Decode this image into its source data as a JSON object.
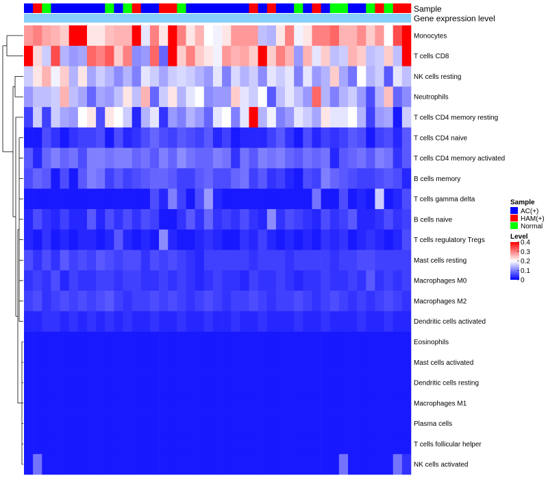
{
  "chart_data": {
    "type": "heatmap",
    "annotation_labels": [
      "Sample",
      "Gene expression level"
    ],
    "sample_groups": [
      "AC",
      "HAM",
      "NOR",
      "AC",
      "AC",
      "AC",
      "AC",
      "AC",
      "AC",
      "NOR",
      "AC",
      "NOR",
      "HAM",
      "AC",
      "AC",
      "HAM",
      "HAM",
      "NOR",
      "AC",
      "AC",
      "AC",
      "AC",
      "AC",
      "AC",
      "AC",
      "HAM",
      "AC",
      "HAM",
      "AC",
      "AC",
      "NOR",
      "AC",
      "HAM",
      "AC",
      "NOR",
      "NOR",
      "AC",
      "AC",
      "NOR",
      "HAM",
      "NOR",
      "HAM",
      "HAM"
    ],
    "rows": [
      "Monocytes",
      "T cells CD8",
      "NK cells resting",
      "Neutrophils",
      "T cells CD4 memory resting",
      "T cells CD4 naive",
      "T cells CD4 memory activated",
      "B cells memory",
      "T cells gamma delta",
      "B cells naive",
      "T cells regulatory  Tregs",
      "Mast cells resting",
      "Macrophages M0",
      "Macrophages M2",
      "Dendritic cells activated",
      "Eosinophils",
      "Mast cells activated",
      "Dendritic cells resting",
      "Macrophages M1",
      "Plasma cells",
      "T cells follicular helper",
      "NK cells activated"
    ],
    "values": [
      [
        0.28,
        0.3,
        0.27,
        0.26,
        0.24,
        0.4,
        0.4,
        0.22,
        0.22,
        0.25,
        0.26,
        0.26,
        0.4,
        0.18,
        0.3,
        0.22,
        0.4,
        0.3,
        0.22,
        0.26,
        0.2,
        0.19,
        0.22,
        0.28,
        0.28,
        0.28,
        0.15,
        0.14,
        0.22,
        0.3,
        0.19,
        0.22,
        0.3,
        0.3,
        0.32,
        0.26,
        0.26,
        0.29,
        0.24,
        0.28,
        0.2,
        0.34,
        0.4
      ],
      [
        0.4,
        0.23,
        0.16,
        0.34,
        0.14,
        0.12,
        0.13,
        0.32,
        0.3,
        0.33,
        0.24,
        0.3,
        0.11,
        0.12,
        0.32,
        0.08,
        0.4,
        0.24,
        0.3,
        0.24,
        0.22,
        0.19,
        0.28,
        0.26,
        0.27,
        0.24,
        0.4,
        0.24,
        0.3,
        0.26,
        0.12,
        0.26,
        0.18,
        0.24,
        0.15,
        0.16,
        0.26,
        0.24,
        0.15,
        0.16,
        0.24,
        0.15,
        0.4
      ],
      [
        0.16,
        0.22,
        0.26,
        0.19,
        0.24,
        0.14,
        0.22,
        0.13,
        0.16,
        0.14,
        0.11,
        0.14,
        0.1,
        0.18,
        0.16,
        0.13,
        0.16,
        0.17,
        0.16,
        0.14,
        0.12,
        0.18,
        0.1,
        0.17,
        0.14,
        0.16,
        0.11,
        0.18,
        0.16,
        0.18,
        0.1,
        0.18,
        0.12,
        0.14,
        0.24,
        0.13,
        0.09,
        0.2,
        0.14,
        0.16,
        0.07,
        0.18,
        0.15
      ],
      [
        0.12,
        0.15,
        0.15,
        0.16,
        0.26,
        0.15,
        0.13,
        0.08,
        0.13,
        0.12,
        0.15,
        0.22,
        0.15,
        0.26,
        0.08,
        0.16,
        0.22,
        0.14,
        0.18,
        0.2,
        0.11,
        0.12,
        0.12,
        0.24,
        0.18,
        0.16,
        0.2,
        0.07,
        0.15,
        0.18,
        0.15,
        0.12,
        0.32,
        0.14,
        0.1,
        0.14,
        0.16,
        0.12,
        0.06,
        0.14,
        0.25,
        0.08,
        0.11
      ],
      [
        0.05,
        0.16,
        0.05,
        0.16,
        0.13,
        0.12,
        0.2,
        0.22,
        0.06,
        0.22,
        0.2,
        0.16,
        0.03,
        0.14,
        0.18,
        0.04,
        0.12,
        0.1,
        0.14,
        0.12,
        0.08,
        0.18,
        0.2,
        0.1,
        0.18,
        0.4,
        0.14,
        0.19,
        0.1,
        0.12,
        0.18,
        0.16,
        0.13,
        0.22,
        0.18,
        0.18,
        0.2,
        0.14,
        0.05,
        0.12,
        0.13,
        0.02,
        0.16
      ],
      [
        0.02,
        0.02,
        0.06,
        0.04,
        0.02,
        0.04,
        0.05,
        0.05,
        0.06,
        0.02,
        0.06,
        0.03,
        0.04,
        0.06,
        0.08,
        0.06,
        0.05,
        0.07,
        0.06,
        0.05,
        0.07,
        0.03,
        0.05,
        0.02,
        0.03,
        0.03,
        0.03,
        0.05,
        0.07,
        0.04,
        0.02,
        0.06,
        0.03,
        0.05,
        0.04,
        0.05,
        0.07,
        0.06,
        0.02,
        0.05,
        0.06,
        0.03,
        0.07
      ],
      [
        0.07,
        0.03,
        0.08,
        0.1,
        0.08,
        0.09,
        0.06,
        0.1,
        0.1,
        0.09,
        0.1,
        0.1,
        0.08,
        0.09,
        0.07,
        0.1,
        0.08,
        0.11,
        0.09,
        0.08,
        0.08,
        0.1,
        0.09,
        0.04,
        0.09,
        0.07,
        0.1,
        0.09,
        0.1,
        0.08,
        0.07,
        0.09,
        0.08,
        0.09,
        0.03,
        0.07,
        0.08,
        0.09,
        0.07,
        0.1,
        0.09,
        0.04,
        0.07
      ],
      [
        0.06,
        0.08,
        0.07,
        0.02,
        0.06,
        0.02,
        0.07,
        0.1,
        0.09,
        0.05,
        0.07,
        0.05,
        0.06,
        0.07,
        0.08,
        0.08,
        0.07,
        0.05,
        0.05,
        0.07,
        0.08,
        0.06,
        0.06,
        0.08,
        0.09,
        0.05,
        0.07,
        0.04,
        0.05,
        0.03,
        0.02,
        0.06,
        0.05,
        0.1,
        0.08,
        0.07,
        0.06,
        0.05,
        0.05,
        0.06,
        0.07,
        0.06,
        0.03
      ],
      [
        0.02,
        0.02,
        0.02,
        0.02,
        0.02,
        0.02,
        0.02,
        0.02,
        0.02,
        0.02,
        0.02,
        0.02,
        0.02,
        0.02,
        0.06,
        0.03,
        0.1,
        0.05,
        0.02,
        0.06,
        0.12,
        0.03,
        0.02,
        0.02,
        0.02,
        0.02,
        0.02,
        0.02,
        0.02,
        0.02,
        0.02,
        0.02,
        0.09,
        0.02,
        0.02,
        0.06,
        0.02,
        0.03,
        0.02,
        0.16,
        0.02,
        0.03,
        0.06
      ],
      [
        0.03,
        0.06,
        0.04,
        0.03,
        0.05,
        0.03,
        0.03,
        0.07,
        0.03,
        0.06,
        0.04,
        0.06,
        0.04,
        0.06,
        0.05,
        0.02,
        0.02,
        0.04,
        0.07,
        0.04,
        0.08,
        0.04,
        0.05,
        0.04,
        0.06,
        0.04,
        0.03,
        0.11,
        0.04,
        0.06,
        0.05,
        0.04,
        0.03,
        0.06,
        0.04,
        0.05,
        0.07,
        0.03,
        0.03,
        0.04,
        0.06,
        0.04,
        0.05
      ],
      [
        0.03,
        0.02,
        0.04,
        0.02,
        0.03,
        0.02,
        0.03,
        0.03,
        0.02,
        0.03,
        0.07,
        0.03,
        0.02,
        0.03,
        0.02,
        0.11,
        0.03,
        0.02,
        0.02,
        0.03,
        0.04,
        0.03,
        0.02,
        0.02,
        0.04,
        0.03,
        0.05,
        0.03,
        0.02,
        0.03,
        0.02,
        0.03,
        0.02,
        0.04,
        0.03,
        0.04,
        0.02,
        0.03,
        0.04,
        0.03,
        0.02,
        0.03,
        0.06
      ],
      [
        0.06,
        0.04,
        0.06,
        0.04,
        0.07,
        0.05,
        0.06,
        0.05,
        0.07,
        0.06,
        0.05,
        0.06,
        0.06,
        0.04,
        0.06,
        0.05,
        0.06,
        0.05,
        0.04,
        0.03,
        0.05,
        0.05,
        0.05,
        0.05,
        0.05,
        0.04,
        0.05,
        0.05,
        0.05,
        0.04,
        0.05,
        0.05,
        0.05,
        0.05,
        0.04,
        0.05,
        0.05,
        0.06,
        0.06,
        0.05,
        0.05,
        0.05,
        0.05
      ],
      [
        0.04,
        0.05,
        0.04,
        0.06,
        0.03,
        0.05,
        0.04,
        0.04,
        0.05,
        0.05,
        0.04,
        0.05,
        0.05,
        0.04,
        0.04,
        0.05,
        0.04,
        0.05,
        0.04,
        0.03,
        0.04,
        0.05,
        0.04,
        0.04,
        0.03,
        0.05,
        0.04,
        0.04,
        0.05,
        0.04,
        0.03,
        0.04,
        0.04,
        0.05,
        0.04,
        0.04,
        0.05,
        0.04,
        0.07,
        0.04,
        0.05,
        0.04,
        0.05
      ],
      [
        0.05,
        0.06,
        0.04,
        0.05,
        0.06,
        0.05,
        0.06,
        0.05,
        0.06,
        0.07,
        0.05,
        0.04,
        0.05,
        0.05,
        0.06,
        0.05,
        0.06,
        0.05,
        0.04,
        0.05,
        0.06,
        0.05,
        0.04,
        0.05,
        0.05,
        0.06,
        0.05,
        0.04,
        0.05,
        0.05,
        0.06,
        0.05,
        0.04,
        0.05,
        0.06,
        0.05,
        0.04,
        0.05,
        0.04,
        0.05,
        0.06,
        0.05,
        0.04
      ],
      [
        0.03,
        0.03,
        0.04,
        0.04,
        0.03,
        0.04,
        0.03,
        0.04,
        0.03,
        0.04,
        0.03,
        0.04,
        0.03,
        0.03,
        0.04,
        0.03,
        0.03,
        0.04,
        0.03,
        0.03,
        0.04,
        0.03,
        0.03,
        0.04,
        0.03,
        0.03,
        0.04,
        0.03,
        0.03,
        0.03,
        0.04,
        0.03,
        0.03,
        0.04,
        0.03,
        0.03,
        0.03,
        0.04,
        0.03,
        0.03,
        0.04,
        0.03,
        0.03
      ],
      [
        0.02,
        0.02,
        0.02,
        0.02,
        0.02,
        0.02,
        0.02,
        0.02,
        0.02,
        0.02,
        0.02,
        0.02,
        0.02,
        0.02,
        0.02,
        0.02,
        0.02,
        0.02,
        0.02,
        0.02,
        0.02,
        0.02,
        0.02,
        0.02,
        0.02,
        0.02,
        0.02,
        0.02,
        0.02,
        0.02,
        0.02,
        0.02,
        0.02,
        0.02,
        0.02,
        0.02,
        0.02,
        0.02,
        0.02,
        0.02,
        0.02,
        0.02,
        0.02
      ],
      [
        0.02,
        0.02,
        0.02,
        0.02,
        0.02,
        0.02,
        0.02,
        0.02,
        0.02,
        0.02,
        0.02,
        0.02,
        0.02,
        0.02,
        0.02,
        0.02,
        0.02,
        0.02,
        0.02,
        0.02,
        0.02,
        0.02,
        0.02,
        0.02,
        0.02,
        0.02,
        0.02,
        0.02,
        0.02,
        0.02,
        0.02,
        0.02,
        0.02,
        0.02,
        0.02,
        0.02,
        0.02,
        0.02,
        0.02,
        0.02,
        0.02,
        0.02,
        0.02
      ],
      [
        0.02,
        0.02,
        0.02,
        0.02,
        0.02,
        0.02,
        0.02,
        0.02,
        0.02,
        0.02,
        0.02,
        0.02,
        0.02,
        0.02,
        0.02,
        0.02,
        0.02,
        0.02,
        0.02,
        0.02,
        0.02,
        0.02,
        0.02,
        0.02,
        0.02,
        0.02,
        0.02,
        0.02,
        0.02,
        0.02,
        0.02,
        0.02,
        0.02,
        0.02,
        0.02,
        0.02,
        0.02,
        0.02,
        0.02,
        0.02,
        0.02,
        0.02,
        0.02
      ],
      [
        0.02,
        0.02,
        0.02,
        0.02,
        0.02,
        0.02,
        0.02,
        0.02,
        0.02,
        0.02,
        0.02,
        0.02,
        0.02,
        0.02,
        0.02,
        0.02,
        0.02,
        0.02,
        0.02,
        0.02,
        0.02,
        0.02,
        0.02,
        0.02,
        0.02,
        0.02,
        0.02,
        0.02,
        0.02,
        0.02,
        0.02,
        0.02,
        0.02,
        0.02,
        0.02,
        0.02,
        0.02,
        0.02,
        0.02,
        0.02,
        0.02,
        0.02,
        0.02
      ],
      [
        0.02,
        0.02,
        0.02,
        0.02,
        0.02,
        0.02,
        0.02,
        0.02,
        0.02,
        0.02,
        0.02,
        0.02,
        0.02,
        0.02,
        0.02,
        0.02,
        0.02,
        0.02,
        0.02,
        0.02,
        0.02,
        0.02,
        0.02,
        0.02,
        0.02,
        0.02,
        0.02,
        0.02,
        0.02,
        0.02,
        0.02,
        0.02,
        0.02,
        0.02,
        0.02,
        0.02,
        0.02,
        0.02,
        0.02,
        0.02,
        0.02,
        0.02,
        0.02
      ],
      [
        0.02,
        0.02,
        0.02,
        0.02,
        0.02,
        0.02,
        0.02,
        0.02,
        0.02,
        0.02,
        0.02,
        0.02,
        0.02,
        0.02,
        0.02,
        0.02,
        0.02,
        0.02,
        0.02,
        0.02,
        0.02,
        0.02,
        0.02,
        0.02,
        0.02,
        0.02,
        0.02,
        0.02,
        0.02,
        0.02,
        0.02,
        0.02,
        0.02,
        0.02,
        0.02,
        0.02,
        0.02,
        0.02,
        0.02,
        0.02,
        0.02,
        0.02,
        0.02
      ],
      [
        0.02,
        0.09,
        0.02,
        0.02,
        0.02,
        0.02,
        0.02,
        0.02,
        0.02,
        0.02,
        0.02,
        0.02,
        0.02,
        0.02,
        0.02,
        0.02,
        0.02,
        0.02,
        0.02,
        0.02,
        0.02,
        0.02,
        0.02,
        0.02,
        0.02,
        0.02,
        0.02,
        0.02,
        0.02,
        0.02,
        0.02,
        0.02,
        0.02,
        0.02,
        0.02,
        0.09,
        0.02,
        0.02,
        0.02,
        0.02,
        0.02,
        0.09,
        0.04
      ]
    ],
    "legend": {
      "sample_title": "Sample",
      "sample_items": [
        {
          "key": "AC",
          "label": "AC(+)",
          "color": "#0000ff"
        },
        {
          "key": "HAM",
          "label": "HAM(+)",
          "color": "#ff0000"
        },
        {
          "key": "NOR",
          "label": "Normal",
          "color": "#00ff00"
        }
      ],
      "level_title": "Level",
      "level_ticks": [
        "0.4",
        "0.3",
        "0.2",
        "0.1",
        "0"
      ],
      "level_range": [
        0,
        0.4
      ]
    },
    "colors": {
      "low": "#0000ff",
      "mid": "#ffffff",
      "high": "#ff0000",
      "gene_expression_band": "#87cefa"
    }
  }
}
